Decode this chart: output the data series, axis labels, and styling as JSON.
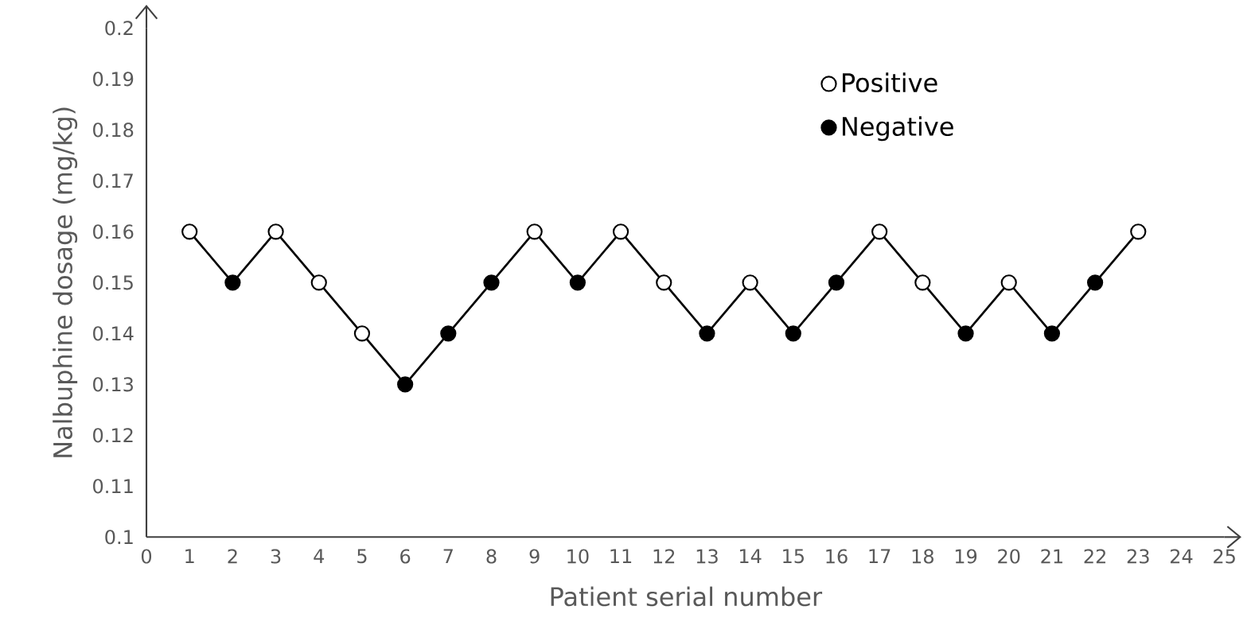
{
  "chart_data": {
    "type": "line",
    "xlabel": "Patient serial number",
    "ylabel": "Nalbuphine dosage (mg/kg)",
    "xlim": [
      0,
      25
    ],
    "xticks": [
      0,
      1,
      2,
      3,
      4,
      5,
      6,
      7,
      8,
      9,
      10,
      11,
      12,
      13,
      14,
      15,
      16,
      17,
      18,
      19,
      20,
      21,
      22,
      23,
      24,
      25
    ],
    "ylim": [
      0.1,
      0.2
    ],
    "yticks": [
      0.1,
      0.11,
      0.12,
      0.13,
      0.14,
      0.15,
      0.16,
      0.17,
      0.18,
      0.19,
      0.2
    ],
    "grid": false,
    "legend": "top right",
    "series": [
      {
        "color": "#000000",
        "marker": "none",
        "x": [
          1,
          2,
          3,
          4,
          5,
          6,
          7,
          8,
          9,
          10,
          11,
          12,
          13,
          14,
          15,
          16,
          17,
          18,
          19,
          20,
          21,
          22,
          23
        ],
        "values": [
          0.16,
          0.15,
          0.16,
          0.15,
          0.14,
          0.13,
          0.14,
          0.15,
          0.16,
          0.15,
          0.16,
          0.15,
          0.14,
          0.15,
          0.14,
          0.15,
          0.16,
          0.15,
          0.14,
          0.15,
          0.14,
          0.15,
          0.16
        ]
      },
      {
        "type": "scatter",
        "name": "Positive",
        "marker": "circle",
        "color": "#ffffff",
        "x": [
          1,
          3,
          4,
          5,
          9,
          11,
          12,
          14,
          17,
          18,
          20,
          23
        ],
        "values": [
          0.16,
          0.16,
          0.15,
          0.14,
          0.16,
          0.16,
          0.15,
          0.15,
          0.16,
          0.15,
          0.15,
          0.16
        ]
      },
      {
        "type": "scatter",
        "name": "Negative",
        "marker": "circle",
        "color": "#000000",
        "x": [
          2,
          6,
          7,
          8,
          10,
          13,
          15,
          16,
          19,
          21,
          22
        ],
        "values": [
          0.15,
          0.13,
          0.14,
          0.15,
          0.15,
          0.14,
          0.14,
          0.15,
          0.14,
          0.14,
          0.15
        ]
      }
    ]
  }
}
